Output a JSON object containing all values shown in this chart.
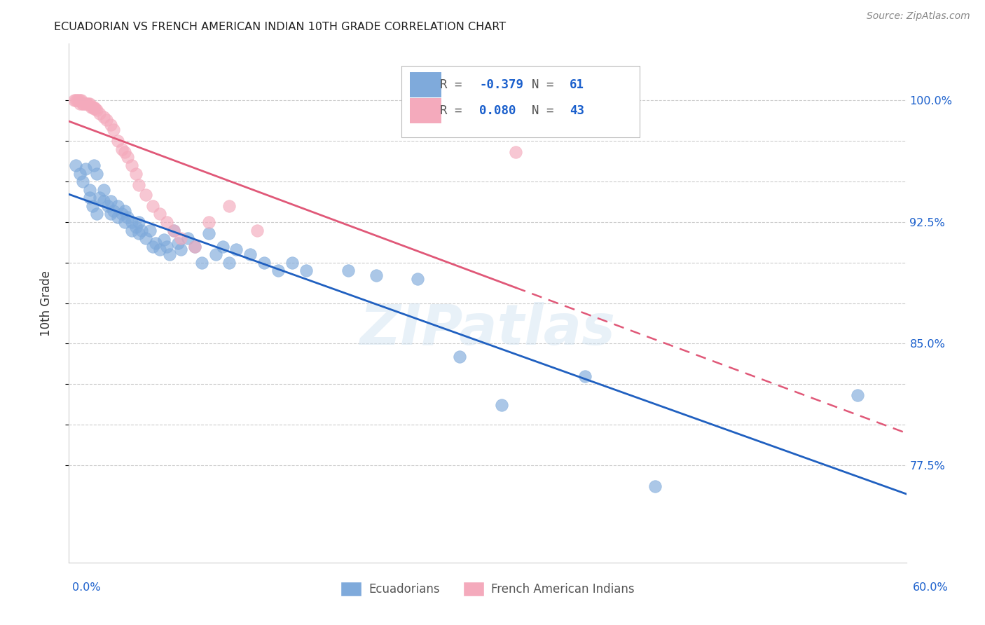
{
  "title": "ECUADORIAN VS FRENCH AMERICAN INDIAN 10TH GRADE CORRELATION CHART",
  "source": "Source: ZipAtlas.com",
  "ylabel": "10th Grade",
  "ytick_vals": [
    0.775,
    0.8,
    0.825,
    0.85,
    0.875,
    0.9,
    0.925,
    0.95,
    0.975,
    1.0
  ],
  "ytick_labels": [
    "77.5%",
    "",
    "",
    "85.0%",
    "",
    "",
    "92.5%",
    "",
    "",
    "100.0%"
  ],
  "xlim": [
    0.0,
    0.6
  ],
  "ylim": [
    0.715,
    1.035
  ],
  "r_blue": -0.379,
  "n_blue": 61,
  "r_pink": 0.08,
  "n_pink": 43,
  "blue_color": "#7faadb",
  "pink_color": "#f4aabc",
  "blue_line_color": "#2060c0",
  "pink_line_color": "#e05878",
  "watermark": "ZIPatlas",
  "legend_label_blue": "Ecuadorians",
  "legend_label_pink": "French American Indians",
  "blue_scatter_x": [
    0.005,
    0.008,
    0.01,
    0.012,
    0.015,
    0.015,
    0.017,
    0.018,
    0.02,
    0.02,
    0.022,
    0.025,
    0.025,
    0.028,
    0.03,
    0.03,
    0.032,
    0.035,
    0.035,
    0.038,
    0.04,
    0.04,
    0.042,
    0.045,
    0.045,
    0.048,
    0.05,
    0.05,
    0.052,
    0.055,
    0.058,
    0.06,
    0.062,
    0.065,
    0.068,
    0.07,
    0.072,
    0.075,
    0.078,
    0.08,
    0.085,
    0.09,
    0.095,
    0.1,
    0.105,
    0.11,
    0.115,
    0.12,
    0.13,
    0.14,
    0.15,
    0.16,
    0.17,
    0.2,
    0.22,
    0.25,
    0.28,
    0.31,
    0.37,
    0.42,
    0.565
  ],
  "blue_scatter_y": [
    0.96,
    0.955,
    0.95,
    0.958,
    0.945,
    0.94,
    0.935,
    0.96,
    0.93,
    0.955,
    0.94,
    0.938,
    0.945,
    0.935,
    0.938,
    0.93,
    0.932,
    0.928,
    0.935,
    0.93,
    0.925,
    0.932,
    0.928,
    0.925,
    0.92,
    0.922,
    0.918,
    0.925,
    0.92,
    0.915,
    0.92,
    0.91,
    0.912,
    0.908,
    0.914,
    0.91,
    0.905,
    0.92,
    0.912,
    0.908,
    0.915,
    0.91,
    0.9,
    0.918,
    0.905,
    0.91,
    0.9,
    0.908,
    0.905,
    0.9,
    0.895,
    0.9,
    0.895,
    0.895,
    0.892,
    0.89,
    0.842,
    0.812,
    0.83,
    0.762,
    0.818
  ],
  "pink_scatter_x": [
    0.004,
    0.005,
    0.006,
    0.007,
    0.008,
    0.008,
    0.009,
    0.01,
    0.01,
    0.012,
    0.012,
    0.013,
    0.014,
    0.015,
    0.016,
    0.017,
    0.018,
    0.018,
    0.019,
    0.02,
    0.022,
    0.025,
    0.027,
    0.03,
    0.032,
    0.035,
    0.038,
    0.04,
    0.042,
    0.045,
    0.048,
    0.05,
    0.055,
    0.06,
    0.065,
    0.07,
    0.075,
    0.08,
    0.09,
    0.1,
    0.115,
    0.135,
    0.32
  ],
  "pink_scatter_y": [
    1.0,
    1.0,
    1.0,
    1.0,
    1.0,
    0.998,
    1.0,
    0.998,
    0.998,
    0.998,
    0.998,
    0.998,
    0.998,
    0.998,
    0.996,
    0.996,
    0.996,
    0.995,
    0.995,
    0.994,
    0.992,
    0.99,
    0.988,
    0.985,
    0.982,
    0.975,
    0.97,
    0.968,
    0.965,
    0.96,
    0.955,
    0.948,
    0.942,
    0.935,
    0.93,
    0.925,
    0.92,
    0.915,
    0.91,
    0.925,
    0.935,
    0.92,
    0.968
  ]
}
